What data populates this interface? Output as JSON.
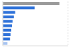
{
  "chart_data": {
    "type": "bar",
    "orientation": "horizontal",
    "categories": [
      null,
      null,
      null,
      null,
      null,
      null,
      null,
      null,
      null,
      null
    ],
    "values": [
      87,
      49,
      19,
      17,
      15,
      14,
      13,
      12,
      11,
      7
    ],
    "colors": [
      "#9a9a9a",
      "#2f72d9",
      "#2f72d9",
      "#2f72d9",
      "#2f72d9",
      "#2f72d9",
      "#2f72d9",
      "#2f72d9",
      "#2f72d9",
      "#a8c4f0"
    ],
    "xlim": [
      0,
      100
    ],
    "xticks": [
      0,
      25,
      50,
      75,
      100
    ],
    "grid": true,
    "tick_labels": false
  }
}
